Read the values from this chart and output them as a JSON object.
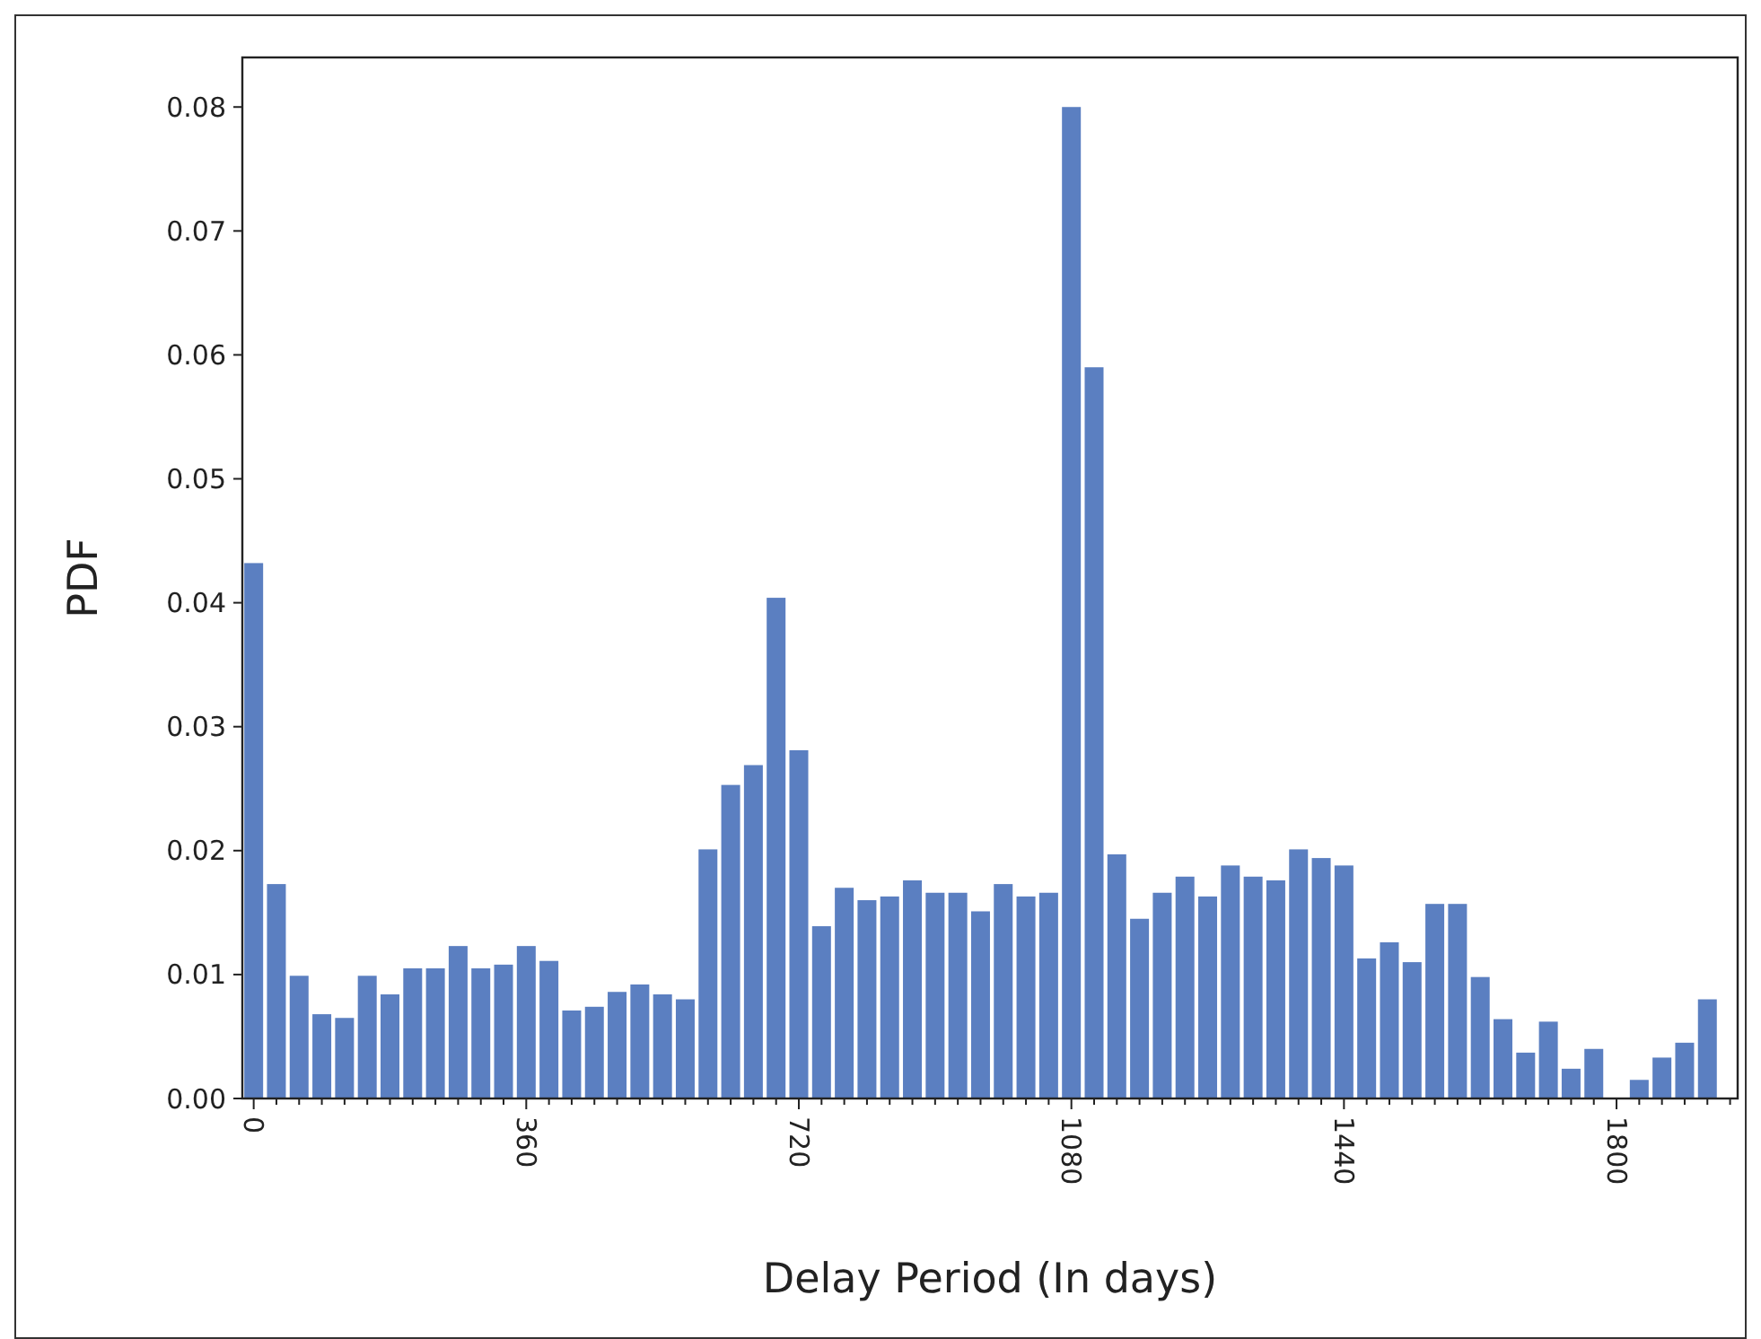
{
  "chart_data": {
    "type": "bar",
    "xlabel": "Delay Period (In days)",
    "ylabel": "PDF",
    "x": [
      0,
      30,
      60,
      90,
      120,
      150,
      180,
      210,
      240,
      270,
      300,
      330,
      360,
      390,
      420,
      450,
      480,
      510,
      540,
      570,
      600,
      630,
      660,
      690,
      720,
      750,
      780,
      810,
      840,
      870,
      900,
      930,
      960,
      990,
      1020,
      1050,
      1080,
      1110,
      1140,
      1170,
      1200,
      1230,
      1260,
      1290,
      1320,
      1350,
      1380,
      1410,
      1440,
      1470,
      1500,
      1530,
      1560,
      1590,
      1620,
      1650,
      1680,
      1710,
      1740,
      1770,
      1800,
      1830,
      1860,
      1890,
      1920
    ],
    "values": [
      0.0432,
      0.0173,
      0.0099,
      0.0068,
      0.0065,
      0.0099,
      0.0084,
      0.0105,
      0.0105,
      0.0123,
      0.0105,
      0.0108,
      0.0123,
      0.0111,
      0.0071,
      0.0074,
      0.0086,
      0.0092,
      0.0084,
      0.008,
      0.0201,
      0.0253,
      0.0269,
      0.0404,
      0.0281,
      0.0139,
      0.017,
      0.016,
      0.0163,
      0.0176,
      0.0166,
      0.0166,
      0.0151,
      0.0173,
      0.0163,
      0.0166,
      0.08,
      0.059,
      0.0197,
      0.0145,
      0.0166,
      0.0179,
      0.0163,
      0.0188,
      0.0179,
      0.0176,
      0.0201,
      0.0194,
      0.0188,
      0.0113,
      0.0126,
      0.011,
      0.0157,
      0.0157,
      0.0098,
      0.0064,
      0.0037,
      0.0062,
      0.0024,
      0.004,
      0,
      0.0015,
      0.0033,
      0.0045,
      0.008
    ],
    "color": "#5b7fc1",
    "xlim": [
      -15,
      1960
    ],
    "xticks": [
      0,
      {
        "value": 30,
        "label": null
      },
      {
        "value": 60,
        "label": null
      },
      {
        "value": 90,
        "label": null
      },
      {
        "value": 120,
        "label": null
      },
      {
        "value": 150,
        "label": null
      },
      {
        "value": 180,
        "label": null
      },
      {
        "value": 210,
        "label": null
      },
      {
        "value": 240,
        "label": null
      },
      {
        "value": 270,
        "label": null
      },
      {
        "value": 300,
        "label": null
      },
      {
        "value": 330,
        "label": null
      },
      360,
      {
        "value": 390,
        "label": null
      },
      {
        "value": 420,
        "label": null
      },
      {
        "value": 450,
        "label": null
      },
      {
        "value": 480,
        "label": null
      },
      {
        "value": 510,
        "label": null
      },
      {
        "value": 540,
        "label": null
      },
      {
        "value": 570,
        "label": null
      },
      {
        "value": 600,
        "label": null
      },
      {
        "value": 630,
        "label": null
      },
      {
        "value": 660,
        "label": null
      },
      {
        "value": 690,
        "label": null
      },
      720,
      {
        "value": 750,
        "label": null
      },
      {
        "value": 780,
        "label": null
      },
      {
        "value": 810,
        "label": null
      },
      {
        "value": 840,
        "label": null
      },
      {
        "value": 870,
        "label": null
      },
      {
        "value": 900,
        "label": null
      },
      {
        "value": 930,
        "label": null
      },
      {
        "value": 960,
        "label": null
      },
      {
        "value": 990,
        "label": null
      },
      {
        "value": 1020,
        "label": null
      },
      {
        "value": 1050,
        "label": null
      },
      1080,
      {
        "value": 1110,
        "label": null
      },
      {
        "value": 1140,
        "label": null
      },
      {
        "value": 1170,
        "label": null
      },
      {
        "value": 1200,
        "label": null
      },
      {
        "value": 1230,
        "label": null
      },
      {
        "value": 1260,
        "label": null
      },
      {
        "value": 1290,
        "label": null
      },
      {
        "value": 1320,
        "label": null
      },
      {
        "value": 1350,
        "label": null
      },
      {
        "value": 1380,
        "label": null
      },
      {
        "value": 1410,
        "label": null
      },
      1440,
      {
        "value": 1470,
        "label": null
      },
      {
        "value": 1500,
        "label": null
      },
      {
        "value": 1530,
        "label": null
      },
      {
        "value": 1560,
        "label": null
      },
      {
        "value": 1590,
        "label": null
      },
      {
        "value": 1620,
        "label": null
      },
      {
        "value": 1650,
        "label": null
      },
      {
        "value": 1680,
        "label": null
      },
      {
        "value": 1710,
        "label": null
      },
      {
        "value": 1740,
        "label": null
      },
      {
        "value": 1770,
        "label": null
      },
      1800,
      {
        "value": 1830,
        "label": null
      },
      {
        "value": 1860,
        "label": null
      },
      {
        "value": 1890,
        "label": null
      },
      {
        "value": 1920,
        "label": null
      },
      {
        "value": 1950,
        "label": null
      }
    ],
    "ylim": [
      0,
      0.084
    ],
    "yticks": [
      {
        "value": 0,
        "label": "0.00"
      },
      {
        "value": 0.01,
        "label": "0.01"
      },
      {
        "value": 0.02,
        "label": "0.02"
      },
      {
        "value": 0.03,
        "label": "0.03"
      },
      {
        "value": 0.04,
        "label": "0.04"
      },
      {
        "value": 0.05,
        "label": "0.05"
      },
      {
        "value": 0.06,
        "label": "0.06"
      },
      {
        "value": 0.07,
        "label": "0.07"
      },
      {
        "value": 0.08,
        "label": "0.08"
      }
    ]
  }
}
